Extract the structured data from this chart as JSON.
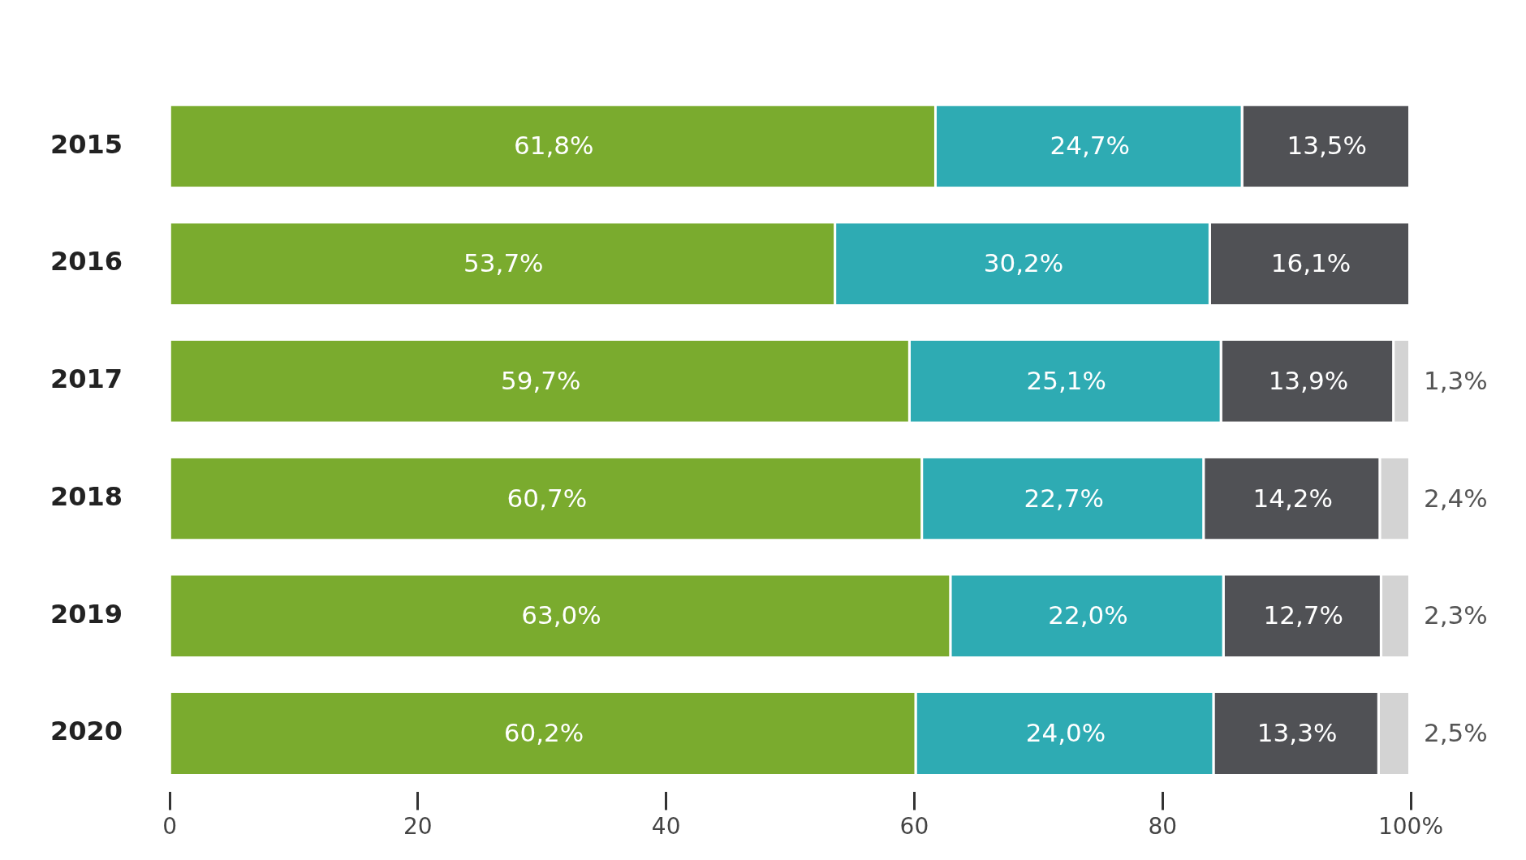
{
  "chart_data": {
    "type": "bar",
    "orientation": "horizontal",
    "stacked": true,
    "grid": false,
    "legend": false,
    "categories": [
      "2015",
      "2016",
      "2017",
      "2018",
      "2019",
      "2020"
    ],
    "xlim": [
      0,
      100
    ],
    "xticks": [
      0,
      20,
      40,
      60,
      80,
      {
        "value": 100,
        "label": "100%"
      }
    ],
    "series": [
      {
        "color": "#7aab2e",
        "values": [
          61.8,
          53.7,
          59.7,
          60.7,
          63.0,
          60.2
        ],
        "value_labels": [
          "61,8%",
          "53,7%",
          "59,7%",
          "60,7%",
          "63,0%",
          "60,2%"
        ]
      },
      {
        "color": "#2eabb3",
        "values": [
          24.7,
          30.2,
          25.1,
          22.7,
          22.0,
          24.0
        ],
        "value_labels": [
          "24,7%",
          "30,2%",
          "25,1%",
          "22,7%",
          "22,0%",
          "24,0%"
        ]
      },
      {
        "color": "#505155",
        "values": [
          13.5,
          16.1,
          13.9,
          14.2,
          12.7,
          13.3
        ],
        "value_labels": [
          "13,5%",
          "16,1%",
          "13,9%",
          "14,2%",
          "12,7%",
          "13,3%"
        ]
      },
      {
        "color": "#d3d3d3",
        "values": [
          null,
          null,
          1.3,
          2.4,
          2.3,
          2.5
        ],
        "value_labels": [
          null,
          null,
          "1,3%",
          "2,4%",
          "2,3%",
          "2,5%"
        ]
      }
    ]
  }
}
